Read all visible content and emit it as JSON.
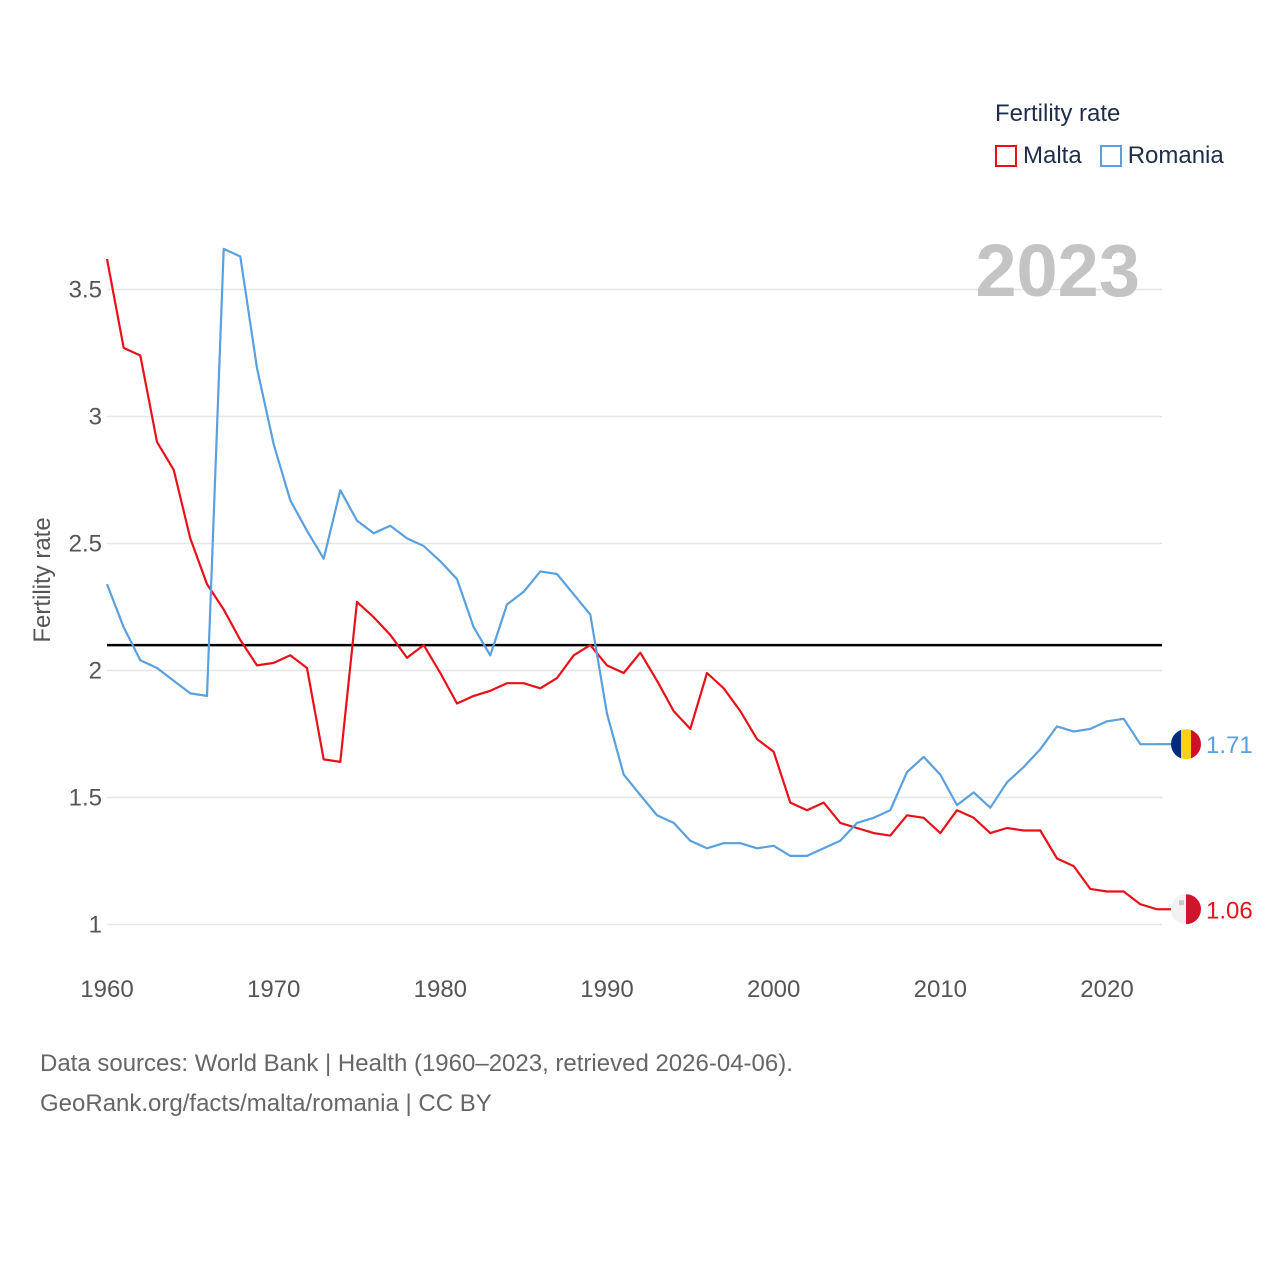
{
  "legend": {
    "title": "Fertility rate",
    "items": [
      {
        "label": "Malta",
        "color": "#e8111a"
      },
      {
        "label": "Romania",
        "color": "#5aa0e0"
      }
    ]
  },
  "year_display": "2023",
  "footer": {
    "line1": "Data sources: World Bank | Health (1960–2023, retrieved 2026-04-06).",
    "line2": "GeoRank.org/facts/malta/romania | CC BY"
  },
  "chart_data": {
    "type": "line",
    "title": "Fertility rate",
    "xlabel": "",
    "ylabel": "Fertility rate",
    "xlim": [
      1960,
      2023
    ],
    "ylim": [
      1,
      3.7
    ],
    "x_ticks": [
      "1960",
      "1970",
      "1980",
      "1990",
      "2000",
      "2010",
      "2020"
    ],
    "y_ticks": [
      "1",
      "1.5",
      "2",
      "2.5",
      "3",
      "3.5"
    ],
    "reference_line": {
      "y": 2.1,
      "color": "#000000"
    },
    "x": [
      1960,
      1961,
      1962,
      1963,
      1964,
      1965,
      1966,
      1967,
      1968,
      1969,
      1970,
      1971,
      1972,
      1973,
      1974,
      1975,
      1976,
      1977,
      1978,
      1979,
      1980,
      1981,
      1982,
      1983,
      1984,
      1985,
      1986,
      1987,
      1988,
      1989,
      1990,
      1991,
      1992,
      1993,
      1994,
      1995,
      1996,
      1997,
      1998,
      1999,
      2000,
      2001,
      2002,
      2003,
      2004,
      2005,
      2006,
      2007,
      2008,
      2009,
      2010,
      2011,
      2012,
      2013,
      2014,
      2015,
      2016,
      2017,
      2018,
      2019,
      2020,
      2021,
      2022,
      2023
    ],
    "series": [
      {
        "name": "Malta",
        "color": "#e8111a",
        "end_label": "1.06",
        "values": [
          3.62,
          3.27,
          3.24,
          2.9,
          2.79,
          2.52,
          2.34,
          2.24,
          2.12,
          2.02,
          2.03,
          2.06,
          2.01,
          1.65,
          1.64,
          2.27,
          2.21,
          2.14,
          2.05,
          2.1,
          1.99,
          1.87,
          1.9,
          1.92,
          1.95,
          1.95,
          1.93,
          1.97,
          2.06,
          2.1,
          2.02,
          1.99,
          2.07,
          1.96,
          1.84,
          1.77,
          1.99,
          1.93,
          1.84,
          1.73,
          1.68,
          1.48,
          1.45,
          1.48,
          1.4,
          1.38,
          1.36,
          1.35,
          1.43,
          1.42,
          1.36,
          1.45,
          1.42,
          1.36,
          1.38,
          1.37,
          1.37,
          1.26,
          1.23,
          1.14,
          1.13,
          1.13,
          1.08,
          1.06
        ]
      },
      {
        "name": "Romania",
        "color": "#5aa0e0",
        "end_label": "1.71",
        "values": [
          2.34,
          2.17,
          2.04,
          2.01,
          1.96,
          1.91,
          1.9,
          3.66,
          3.63,
          3.19,
          2.89,
          2.67,
          2.55,
          2.44,
          2.71,
          2.59,
          2.54,
          2.57,
          2.52,
          2.49,
          2.43,
          2.36,
          2.17,
          2.06,
          2.26,
          2.31,
          2.39,
          2.38,
          2.3,
          2.22,
          1.83,
          1.59,
          1.51,
          1.43,
          1.4,
          1.33,
          1.3,
          1.32,
          1.32,
          1.3,
          1.31,
          1.27,
          1.27,
          1.3,
          1.33,
          1.4,
          1.42,
          1.45,
          1.6,
          1.66,
          1.59,
          1.47,
          1.52,
          1.46,
          1.56,
          1.62,
          1.69,
          1.78,
          1.76,
          1.77,
          1.8,
          1.81,
          1.71,
          1.71
        ]
      }
    ]
  }
}
